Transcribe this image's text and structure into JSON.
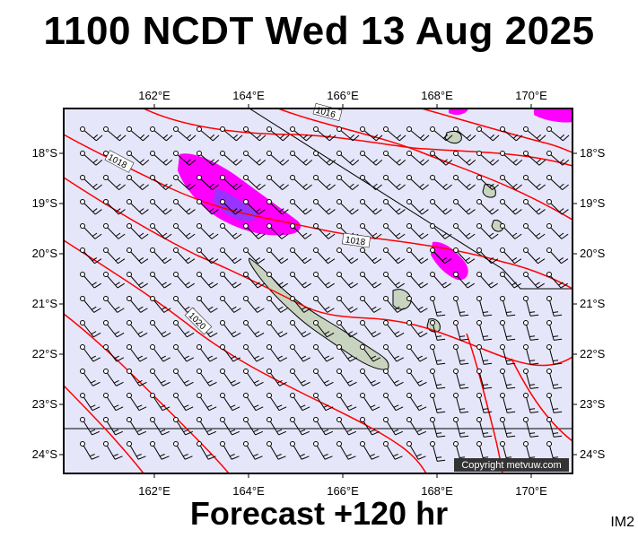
{
  "title": "1100 NCDT Wed 13 Aug 2025",
  "footer": "Forecast +120 hr",
  "code": "IM2",
  "copyright": "Copyright metvuw.com",
  "map": {
    "lon_labels": [
      "162°E",
      "164°E",
      "166°E",
      "168°E",
      "170°E"
    ],
    "lat_labels": [
      "18°S",
      "19°S",
      "20°S",
      "21°S",
      "22°S",
      "23°S",
      "24°S"
    ],
    "isobar_labels": [
      "1016",
      "1018",
      "1018",
      "1020"
    ],
    "colors": {
      "ocean": "#e6e6fa",
      "isobar": "#ff0000",
      "rain_light": "#ff00ff",
      "rain_heavy": "#9933ff",
      "land": "#c8d4c0"
    },
    "wind_barbs": "uniform grid of wind barbs over the ocean"
  }
}
